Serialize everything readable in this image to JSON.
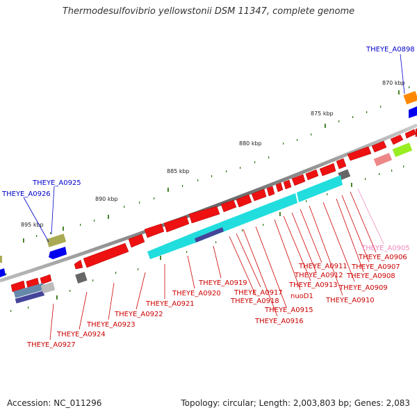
{
  "title": "Thermodesulfovibrio yellowstonii DSM 11347, complete genome",
  "footer": {
    "accession": "Accession: NC_011296",
    "topology": "Topology: circular; Length: 2,003,803 bp; Genes: 2,083"
  },
  "colors": {
    "forward_cds": "#ee1111",
    "rna_gene": "#22dddd",
    "backbone": "#888888",
    "tick": "#337711",
    "label_red": "#cc0000",
    "label_blue": "#0000cc",
    "label_pink": "#ee88bb"
  },
  "scale_labels": [
    "870 kbp",
    "875 kbp",
    "880 kbp",
    "885 kbp",
    "890 kbp",
    "895 kbp"
  ],
  "gene_labels": [
    {
      "name": "THEYE_A0898",
      "color": "blue"
    },
    {
      "name": "THEYE_A0925",
      "color": "blue"
    },
    {
      "name": "THEYE_A0926",
      "color": "blue"
    },
    {
      "name": "THEYE_A0905",
      "color": "pink"
    },
    {
      "name": "THEYE_A0906",
      "color": "red"
    },
    {
      "name": "THEYE_A0907",
      "color": "red"
    },
    {
      "name": "THEYE_A0908",
      "color": "red"
    },
    {
      "name": "THEYE_A0909",
      "color": "red"
    },
    {
      "name": "THEYE_A0910",
      "color": "red"
    },
    {
      "name": "THEYE_A0911",
      "color": "red"
    },
    {
      "name": "THEYE_A0912",
      "color": "red"
    },
    {
      "name": "THEYE_A0913",
      "color": "red"
    },
    {
      "name": "nuoD1",
      "color": "red"
    },
    {
      "name": "THEYE_A0915",
      "color": "red"
    },
    {
      "name": "THEYE_A0916",
      "color": "red"
    },
    {
      "name": "THEYE_A0917",
      "color": "red"
    },
    {
      "name": "THEYE_A0918",
      "color": "red"
    },
    {
      "name": "THEYE_A0919",
      "color": "red"
    },
    {
      "name": "THEYE_A0920",
      "color": "red"
    },
    {
      "name": "THEYE_A0921",
      "color": "red"
    },
    {
      "name": "THEYE_A0922",
      "color": "red"
    },
    {
      "name": "THEYE_A0923",
      "color": "red"
    },
    {
      "name": "THEYE_A0924",
      "color": "red"
    },
    {
      "name": "THEYE_A0927",
      "color": "red"
    }
  ]
}
